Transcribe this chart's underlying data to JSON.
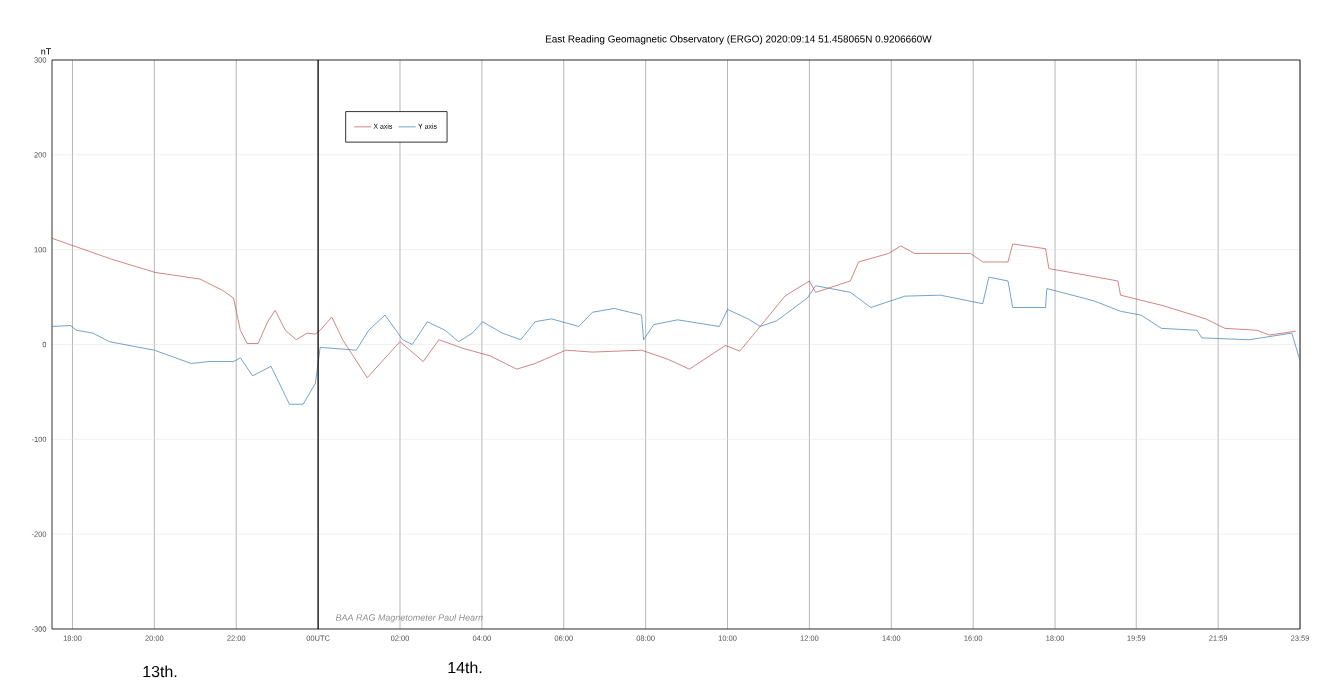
{
  "chart_data": {
    "type": "line",
    "title": "East Reading Geomagnetic Observatory (ERGO)     2020:09:14     51.458065N   0.9206660W",
    "ylabel": "nT",
    "annotations": [
      "13th.",
      "14th.",
      "BAA RAG Magnetometer     Paul Hearn"
    ],
    "xlim": [
      "2020-09-13T17:30",
      "2020-09-14T23:59"
    ],
    "ylim": [
      -300,
      300
    ],
    "xticks": [
      {
        "value": "2020-09-13T18:00",
        "label": "18:00"
      },
      {
        "value": "2020-09-13T20:00",
        "label": "20:00"
      },
      {
        "value": "2020-09-13T22:00",
        "label": "22:00"
      },
      {
        "value": "2020-09-14T00:00",
        "label": "00UTC"
      },
      {
        "value": "2020-09-14T02:00",
        "label": "02:00"
      },
      {
        "value": "2020-09-14T04:00",
        "label": "04:00"
      },
      {
        "value": "2020-09-14T06:00",
        "label": "06:00"
      },
      {
        "value": "2020-09-14T08:00",
        "label": "08:00"
      },
      {
        "value": "2020-09-14T10:00",
        "label": "10:00"
      },
      {
        "value": "2020-09-14T12:00",
        "label": "12:00"
      },
      {
        "value": "2020-09-14T14:00",
        "label": "14:00"
      },
      {
        "value": "2020-09-14T16:00",
        "label": "16:00"
      },
      {
        "value": "2020-09-14T18:00",
        "label": "18:00"
      },
      {
        "value": "2020-09-14T19:59",
        "label": "19:59"
      },
      {
        "value": "2020-09-14T21:59",
        "label": "21:59"
      },
      {
        "value": "2020-09-14T23:59",
        "label": "23:59"
      }
    ],
    "yticks": [
      -300,
      -200,
      -100,
      0,
      100,
      200,
      300
    ],
    "grid": true,
    "legend": "top left",
    "marker": "none",
    "line_style": "solid",
    "ref_lines": [
      {
        "axis": "x",
        "value": "2020-09-14T00:00",
        "color": "#000000"
      }
    ],
    "series": [
      {
        "name": "X axis",
        "color": "#c0504d",
        "x": [
          "2020-09-13T17:30",
          "2020-09-13T18:57",
          "2020-09-13T20:01",
          "2020-09-13T21:07",
          "2020-09-13T21:40",
          "2020-09-13T21:56",
          "2020-09-13T22:06",
          "2020-09-13T22:16",
          "2020-09-13T22:32",
          "2020-09-13T22:46",
          "2020-09-13T22:57",
          "2020-09-13T23:12",
          "2020-09-13T23:28",
          "2020-09-13T23:44",
          "2020-09-13T23:56",
          "2020-09-14T00:03",
          "2020-09-14T00:20",
          "2020-09-14T00:36",
          "2020-09-14T01:12",
          "2020-09-14T01:41",
          "2020-09-14T02:00",
          "2020-09-14T02:34",
          "2020-09-14T02:57",
          "2020-09-14T03:32",
          "2020-09-14T04:12",
          "2020-09-14T04:51",
          "2020-09-14T05:18",
          "2020-09-14T06:03",
          "2020-09-14T06:42",
          "2020-09-14T07:54",
          "2020-09-14T08:34",
          "2020-09-14T09:04",
          "2020-09-14T09:57",
          "2020-09-14T10:18",
          "2020-09-14T10:41",
          "2020-09-14T11:24",
          "2020-09-14T12:00",
          "2020-09-14T12:09",
          "2020-09-14T13:00",
          "2020-09-14T13:12",
          "2020-09-14T13:56",
          "2020-09-14T14:14",
          "2020-09-14T14:34",
          "2020-09-14T15:56",
          "2020-09-14T16:14",
          "2020-09-14T16:51",
          "2020-09-14T16:58",
          "2020-09-14T17:46",
          "2020-09-14T17:51",
          "2020-09-14T18:46",
          "2020-09-14T19:32",
          "2020-09-14T19:36",
          "2020-09-14T20:38",
          "2020-09-14T21:41",
          "2020-09-14T22:09",
          "2020-09-14T22:56",
          "2020-09-14T23:14",
          "2020-09-14T23:53"
        ],
        "values": [
          112,
          90,
          76,
          69,
          57,
          49,
          15,
          1,
          1,
          24,
          36,
          15,
          5,
          12,
          11,
          15,
          29,
          5,
          -35,
          -12,
          3,
          -18,
          5,
          -4,
          -12,
          -26,
          -20,
          -6,
          -8,
          -6,
          -16,
          -26,
          -1,
          -7,
          13,
          51,
          67,
          55,
          67,
          87,
          96,
          104,
          96,
          96,
          87,
          87,
          106,
          101,
          80,
          73,
          67,
          52,
          41,
          27,
          17,
          15,
          10,
          14
        ]
      },
      {
        "name": "Y axis",
        "color": "#3b7bb3",
        "x": [
          "2020-09-13T17:30",
          "2020-09-13T17:57",
          "2020-09-13T18:06",
          "2020-09-13T18:30",
          "2020-09-13T18:54",
          "2020-09-13T19:30",
          "2020-09-13T20:00",
          "2020-09-13T20:54",
          "2020-09-13T21:20",
          "2020-09-13T21:56",
          "2020-09-13T22:06",
          "2020-09-13T22:24",
          "2020-09-13T22:51",
          "2020-09-13T23:18",
          "2020-09-13T23:38",
          "2020-09-13T23:56",
          "2020-09-14T00:03",
          "2020-09-14T00:56",
          "2020-09-14T01:14",
          "2020-09-14T01:38",
          "2020-09-14T02:04",
          "2020-09-14T02:18",
          "2020-09-14T02:40",
          "2020-09-14T03:06",
          "2020-09-14T03:26",
          "2020-09-14T03:46",
          "2020-09-14T04:01",
          "2020-09-14T04:30",
          "2020-09-14T04:57",
          "2020-09-14T05:18",
          "2020-09-14T05:42",
          "2020-09-14T06:22",
          "2020-09-14T06:42",
          "2020-09-14T07:14",
          "2020-09-14T07:54",
          "2020-09-14T07:57",
          "2020-09-14T08:12",
          "2020-09-14T08:47",
          "2020-09-14T09:48",
          "2020-09-14T10:00",
          "2020-09-14T10:30",
          "2020-09-14T10:48",
          "2020-09-14T11:12",
          "2020-09-14T11:57",
          "2020-09-14T12:09",
          "2020-09-14T13:00",
          "2020-09-14T13:30",
          "2020-09-14T14:20",
          "2020-09-14T15:12",
          "2020-09-14T16:14",
          "2020-09-14T16:23",
          "2020-09-14T16:51",
          "2020-09-14T16:58",
          "2020-09-14T17:46",
          "2020-09-14T17:48",
          "2020-09-14T18:57",
          "2020-09-14T19:36",
          "2020-09-14T20:06",
          "2020-09-14T20:36",
          "2020-09-14T21:28",
          "2020-09-14T21:35",
          "2020-09-14T22:44",
          "2020-09-14T23:47",
          "2020-09-14T23:59"
        ],
        "values": [
          19,
          20,
          15,
          12,
          3,
          -2,
          -6,
          -20,
          -18,
          -18,
          -14,
          -33,
          -23,
          -63,
          -63,
          -41,
          -3,
          -6,
          15,
          31,
          5,
          0,
          24,
          15,
          3,
          12,
          24,
          12,
          5,
          24,
          27,
          19,
          34,
          38,
          31,
          5,
          21,
          26,
          19,
          37,
          27,
          19,
          25,
          49,
          62,
          55,
          39,
          51,
          52,
          43,
          71,
          67,
          39,
          39,
          59,
          46,
          35,
          31,
          17,
          15,
          7,
          5,
          12,
          -17
        ]
      }
    ]
  }
}
